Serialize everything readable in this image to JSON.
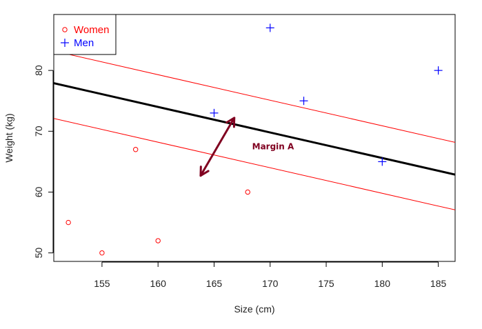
{
  "chart_data": {
    "type": "scatter",
    "title": "",
    "xlabel": "Size (cm)",
    "ylabel": "Weight (kg)",
    "xlim": [
      150.7,
      186.5
    ],
    "ylim": [
      48.6,
      89.2
    ],
    "xticks": [
      155,
      160,
      165,
      170,
      175,
      180,
      185
    ],
    "yticks": [
      50,
      60,
      70,
      80
    ],
    "grid": false,
    "legend": {
      "position": "top-left"
    },
    "series": [
      {
        "name": "Women",
        "marker": "circle",
        "color": "#ff0000",
        "points": [
          {
            "x": 152,
            "y": 55
          },
          {
            "x": 155,
            "y": 50
          },
          {
            "x": 158,
            "y": 67
          },
          {
            "x": 160,
            "y": 52
          },
          {
            "x": 168,
            "y": 60
          }
        ]
      },
      {
        "name": "Men",
        "marker": "plus",
        "color": "#0000ff",
        "points": [
          {
            "x": 165,
            "y": 73
          },
          {
            "x": 170,
            "y": 87
          },
          {
            "x": 173,
            "y": 75
          },
          {
            "x": 180,
            "y": 65
          },
          {
            "x": 185,
            "y": 80
          }
        ]
      }
    ],
    "lines": [
      {
        "role": "separator",
        "color": "#000000",
        "intercept": 141.2,
        "slope": -0.42
      },
      {
        "role": "upper-margin",
        "color": "#ff0000",
        "intercept": 146.5,
        "slope": -0.42
      },
      {
        "role": "lower-margin",
        "color": "#ff0000",
        "intercept": 135.4,
        "slope": -0.42
      }
    ],
    "annotation": {
      "text": "Margin A",
      "color": "#800020",
      "arrow_from": {
        "x": 166.8,
        "y": 72.2
      },
      "arrow_to": {
        "x": 163.8,
        "y": 62.7
      },
      "text_anchor": {
        "x": 169.5,
        "y": 67.5
      }
    }
  }
}
